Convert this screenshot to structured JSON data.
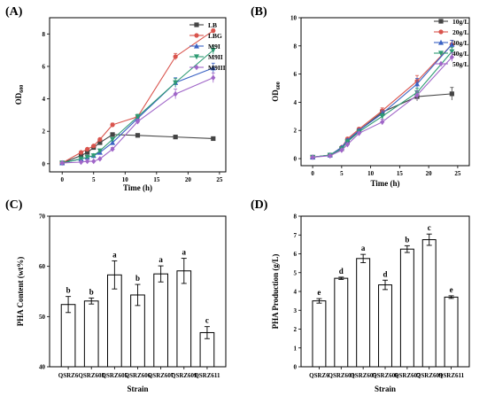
{
  "chart_data": [
    {
      "panel": "(A)",
      "type": "line",
      "xlabel": "Time (h)",
      "ylabel": "OD600",
      "ylabel_main": "OD",
      "ylabel_sub": "600",
      "xlim": [
        -2,
        26
      ],
      "ylim": [
        -0.5,
        9
      ],
      "xticks": [
        0,
        5,
        10,
        15,
        20,
        25
      ],
      "yticks": [
        0,
        2,
        4,
        6,
        8
      ],
      "legend_position": "top-right",
      "x": [
        0,
        3,
        4,
        5,
        6,
        8,
        12,
        18,
        24
      ],
      "series": [
        {
          "name": "LB",
          "color": "#444444",
          "marker": "square",
          "values": [
            0.05,
            0.5,
            0.7,
            1.0,
            1.3,
            1.8,
            1.75,
            1.65,
            1.55
          ],
          "err": [
            0.02,
            0.05,
            0.05,
            0.05,
            0.05,
            0.05,
            0.05,
            0.05,
            0.05
          ]
        },
        {
          "name": "LBG",
          "color": "#d9544d",
          "marker": "circle",
          "values": [
            0.05,
            0.7,
            0.9,
            1.1,
            1.5,
            2.4,
            2.9,
            6.6,
            8.2
          ],
          "err": [
            0.02,
            0.05,
            0.05,
            0.05,
            0.05,
            0.1,
            0.15,
            0.2,
            0.1
          ]
        },
        {
          "name": "M9I",
          "color": "#3a62c4",
          "marker": "triangle-up",
          "values": [
            0.05,
            0.3,
            0.4,
            0.5,
            0.7,
            1.3,
            2.8,
            5.0,
            5.9
          ],
          "err": [
            0.02,
            0.05,
            0.05,
            0.05,
            0.05,
            0.1,
            0.15,
            0.3,
            0.3
          ]
        },
        {
          "name": "M9II",
          "color": "#2e9b73",
          "marker": "triangle-down",
          "values": [
            0.05,
            0.3,
            0.4,
            0.5,
            0.8,
            1.5,
            2.9,
            5.0,
            7.0
          ],
          "err": [
            0.02,
            0.05,
            0.05,
            0.05,
            0.05,
            0.1,
            0.15,
            0.25,
            0.25
          ]
        },
        {
          "name": "M9III",
          "color": "#a066c8",
          "marker": "diamond",
          "values": [
            0.05,
            0.1,
            0.15,
            0.15,
            0.3,
            0.9,
            2.6,
            4.3,
            5.3
          ],
          "err": [
            0.02,
            0.03,
            0.03,
            0.03,
            0.05,
            0.1,
            0.15,
            0.3,
            0.3
          ]
        }
      ]
    },
    {
      "panel": "(B)",
      "type": "line",
      "xlabel": "Time (h)",
      "ylabel": "OD600",
      "ylabel_main": "OD",
      "ylabel_sub": "600",
      "xlim": [
        -2,
        27
      ],
      "ylim": [
        -0.5,
        10
      ],
      "xticks": [
        0,
        5,
        10,
        15,
        20,
        25
      ],
      "yticks": [
        0,
        2,
        4,
        6,
        8,
        10
      ],
      "legend_position": "top-right",
      "x": [
        0,
        3,
        5,
        6,
        8,
        12,
        18,
        24
      ],
      "series": [
        {
          "name": "10g/L",
          "color": "#444444",
          "marker": "square",
          "values": [
            0.1,
            0.25,
            0.7,
            1.2,
            2.0,
            3.3,
            4.4,
            4.6
          ],
          "err": [
            0.02,
            0.05,
            0.05,
            0.1,
            0.1,
            0.2,
            0.3,
            0.45
          ]
        },
        {
          "name": "20g/L",
          "color": "#d9544d",
          "marker": "circle",
          "values": [
            0.1,
            0.25,
            0.8,
            1.4,
            2.1,
            3.4,
            5.5,
            8.1
          ],
          "err": [
            0.02,
            0.05,
            0.05,
            0.1,
            0.1,
            0.2,
            0.4,
            0.3
          ]
        },
        {
          "name": "30g/L",
          "color": "#3a62c4",
          "marker": "triangle-up",
          "values": [
            0.1,
            0.25,
            0.8,
            1.3,
            2.0,
            3.2,
            5.3,
            8.1
          ],
          "err": [
            0.02,
            0.05,
            0.05,
            0.1,
            0.1,
            0.2,
            0.4,
            0.3
          ]
        },
        {
          "name": "40g/L",
          "color": "#2e9b73",
          "marker": "triangle-down",
          "values": [
            0.1,
            0.25,
            0.7,
            1.2,
            1.9,
            3.0,
            4.7,
            7.6
          ],
          "err": [
            0.02,
            0.05,
            0.05,
            0.1,
            0.1,
            0.2,
            0.3,
            0.3
          ]
        },
        {
          "name": "50g/L",
          "color": "#a066c8",
          "marker": "diamond",
          "values": [
            0.1,
            0.2,
            0.6,
            1.0,
            1.8,
            2.6,
            4.5,
            7.2
          ],
          "err": [
            0.02,
            0.05,
            0.05,
            0.1,
            0.1,
            0.2,
            0.3,
            0.3
          ]
        }
      ]
    },
    {
      "panel": "(C)",
      "type": "bar",
      "xlabel": "Strain",
      "ylabel": "PHA Content (wt%)",
      "ylim": [
        40,
        70
      ],
      "yticks": [
        40,
        50,
        60,
        70
      ],
      "categories": [
        "QSRZ6",
        "QSRZ603",
        "QSRZ605",
        "QSRZ606",
        "QSRZ607",
        "QSRZ609",
        "QSRZ611"
      ],
      "values": [
        52.4,
        53.1,
        58.3,
        54.3,
        58.5,
        59.1,
        46.8
      ],
      "err": [
        1.6,
        0.6,
        2.8,
        2.1,
        1.6,
        2.5,
        1.2
      ],
      "labels": [
        "b",
        "b",
        "a",
        "b",
        "a",
        "a",
        "c"
      ]
    },
    {
      "panel": "(D)",
      "type": "bar",
      "xlabel": "Strain",
      "ylabel": "PHA Production (g/L)",
      "ylim": [
        0,
        8
      ],
      "yticks": [
        0,
        1,
        2,
        3,
        4,
        5,
        6,
        7,
        8
      ],
      "categories": [
        "QSRZ6",
        "QSRZ603",
        "QSRZ605",
        "QSRZ606",
        "QSRZ607",
        "QSRZ609",
        "QSRZ611"
      ],
      "values": [
        3.5,
        4.7,
        5.75,
        4.35,
        6.25,
        6.75,
        3.7
      ],
      "err": [
        0.12,
        0.06,
        0.22,
        0.25,
        0.18,
        0.3,
        0.07
      ],
      "labels": [
        "e",
        "d",
        "a",
        "d",
        "b",
        "c",
        "e"
      ]
    }
  ]
}
